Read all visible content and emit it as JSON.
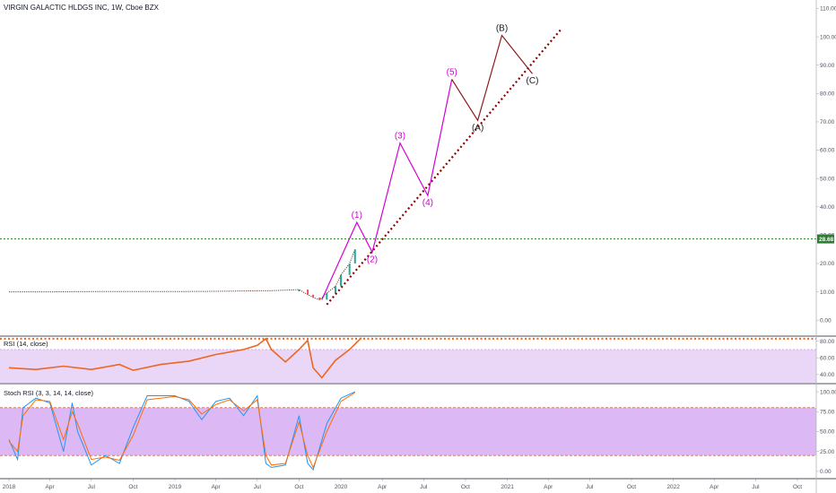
{
  "symbol_title": "VIRGIN GALACTIC HLDGS INC, 1W, Cboe BZX",
  "colors": {
    "wave_impulse": "#d400d4",
    "wave_corrective": "#8b1a1a",
    "trendline": "#8b0000",
    "level_line": "#2e8b2e",
    "price_tag_bg": "#2e7d32",
    "rsi_line": "#f0651f",
    "rsi_band": "#ead6f7",
    "stoch_band": "#dcb8f5",
    "stoch_k": "#2196f3",
    "stoch_d": "#ff6d00",
    "candle_up": "#26a69a",
    "candle_down": "#ef5350",
    "separator": "#131722"
  },
  "chart_data": [
    {
      "type": "line",
      "name": "price-pane",
      "y_ticks": [
        "110.00",
        "100.00",
        "90.00",
        "80.00",
        "70.00",
        "60.00",
        "50.00",
        "40.00",
        "30.00",
        "20.00",
        "10.00",
        "0.00"
      ],
      "ylim": [
        -5,
        113
      ],
      "horizontal_level": {
        "value": 28.68,
        "label": "28.68"
      },
      "price_history": [
        {
          "x": "2018-01",
          "y": 10.0
        },
        {
          "x": "2018-04",
          "y": 10.0
        },
        {
          "x": "2018-07",
          "y": 10.1
        },
        {
          "x": "2018-10",
          "y": 10.1
        },
        {
          "x": "2019-01",
          "y": 10.1
        },
        {
          "x": "2019-04",
          "y": 10.2
        },
        {
          "x": "2019-06",
          "y": 10.3
        },
        {
          "x": "2019-08",
          "y": 10.4
        },
        {
          "x": "2019-09",
          "y": 10.6
        },
        {
          "x": "2019-10",
          "y": 10.8
        },
        {
          "x": "2019-10-20",
          "y": 9.0
        },
        {
          "x": "2019-11",
          "y": 8.0
        },
        {
          "x": "2019-11-15",
          "y": 7.2
        },
        {
          "x": "2019-12",
          "y": 9.5
        },
        {
          "x": "2019-12-20",
          "y": 12.0
        },
        {
          "x": "2020-01",
          "y": 16.0
        },
        {
          "x": "2020-01-20",
          "y": 20.0
        },
        {
          "x": "2020-02",
          "y": 25.0
        }
      ],
      "wave_labels": [
        {
          "label": "(1)",
          "x": "2020-02-05",
          "y": 34.5,
          "kind": "impulse"
        },
        {
          "label": "(2)",
          "x": "2020-03-10",
          "y": 24.0,
          "kind": "impulse"
        },
        {
          "label": "(3)",
          "x": "2020-05-10",
          "y": 62.5,
          "kind": "impulse"
        },
        {
          "label": "(4)",
          "x": "2020-07-10",
          "y": 44.0,
          "kind": "impulse"
        },
        {
          "label": "(5)",
          "x": "2020-09-01",
          "y": 85.0,
          "kind": "impulse"
        },
        {
          "label": "(A)",
          "x": "2020-10-28",
          "y": 70.5,
          "kind": "corrective"
        },
        {
          "label": "(B)",
          "x": "2020-12-20",
          "y": 100.5,
          "kind": "corrective"
        },
        {
          "label": "(C)",
          "x": "2021-02-25",
          "y": 87.0,
          "kind": "corrective"
        }
      ],
      "impulse_path": [
        {
          "x": "2019-11-20",
          "y": 7.2
        },
        {
          "x": "2020-02-05",
          "y": 34.5
        },
        {
          "x": "2020-03-10",
          "y": 24.0
        },
        {
          "x": "2020-05-10",
          "y": 62.5
        },
        {
          "x": "2020-07-10",
          "y": 44.0
        },
        {
          "x": "2020-09-01",
          "y": 85.0
        }
      ],
      "corrective_path": [
        {
          "x": "2020-09-01",
          "y": 85.0
        },
        {
          "x": "2020-10-28",
          "y": 70.5
        },
        {
          "x": "2020-12-20",
          "y": 100.5
        },
        {
          "x": "2021-02-25",
          "y": 87.0
        }
      ],
      "trendline": [
        {
          "x": "2019-12-01",
          "y": 5.5
        },
        {
          "x": "2021-05-01",
          "y": 103.0
        }
      ]
    },
    {
      "type": "line",
      "name": "rsi-pane",
      "label": "RSI (14, close)",
      "y_ticks": [
        "80.00",
        "60.00",
        "40.00"
      ],
      "ylim": [
        30,
        85
      ],
      "band": [
        30,
        70
      ],
      "values": [
        {
          "x": "2018-01",
          "y": 48
        },
        {
          "x": "2018-03",
          "y": 46
        },
        {
          "x": "2018-05",
          "y": 50
        },
        {
          "x": "2018-07",
          "y": 46
        },
        {
          "x": "2018-09",
          "y": 52
        },
        {
          "x": "2018-10",
          "y": 45
        },
        {
          "x": "2018-12",
          "y": 52
        },
        {
          "x": "2019-02",
          "y": 56
        },
        {
          "x": "2019-04",
          "y": 64
        },
        {
          "x": "2019-06",
          "y": 70
        },
        {
          "x": "2019-07",
          "y": 75
        },
        {
          "x": "2019-07-20",
          "y": 83
        },
        {
          "x": "2019-08",
          "y": 70
        },
        {
          "x": "2019-09",
          "y": 55
        },
        {
          "x": "2019-10",
          "y": 70
        },
        {
          "x": "2019-10-20",
          "y": 81
        },
        {
          "x": "2019-11",
          "y": 48
        },
        {
          "x": "2019-11-20",
          "y": 36
        },
        {
          "x": "2019-12-20",
          "y": 57
        },
        {
          "x": "2020-01-20",
          "y": 70
        },
        {
          "x": "2020-02-15",
          "y": 84
        }
      ]
    },
    {
      "type": "line",
      "name": "stoch-pane",
      "label": "Stoch RSI (3, 3, 14, 14, close)",
      "y_ticks": [
        "100.00",
        "75.00",
        "50.00",
        "25.00",
        "0.00"
      ],
      "ylim": [
        -8,
        108
      ],
      "band": [
        20,
        80
      ],
      "series": [
        {
          "name": "K",
          "values": [
            {
              "x": "2018-01",
              "y": 40
            },
            {
              "x": "2018-01-20",
              "y": 15
            },
            {
              "x": "2018-02",
              "y": 80
            },
            {
              "x": "2018-03",
              "y": 92
            },
            {
              "x": "2018-04",
              "y": 86
            },
            {
              "x": "2018-05",
              "y": 25
            },
            {
              "x": "2018-05-20",
              "y": 86
            },
            {
              "x": "2018-06",
              "y": 50
            },
            {
              "x": "2018-07",
              "y": 8
            },
            {
              "x": "2018-08",
              "y": 20
            },
            {
              "x": "2018-09",
              "y": 10
            },
            {
              "x": "2018-10",
              "y": 55
            },
            {
              "x": "2018-11",
              "y": 95
            },
            {
              "x": "2019-01",
              "y": 95
            },
            {
              "x": "2019-02",
              "y": 88
            },
            {
              "x": "2019-03",
              "y": 65
            },
            {
              "x": "2019-04",
              "y": 88
            },
            {
              "x": "2019-05",
              "y": 92
            },
            {
              "x": "2019-06",
              "y": 70
            },
            {
              "x": "2019-07",
              "y": 95
            },
            {
              "x": "2019-07-20",
              "y": 10
            },
            {
              "x": "2019-08",
              "y": 5
            },
            {
              "x": "2019-09",
              "y": 8
            },
            {
              "x": "2019-10",
              "y": 70
            },
            {
              "x": "2019-10-20",
              "y": 10
            },
            {
              "x": "2019-11",
              "y": 2
            },
            {
              "x": "2019-12",
              "y": 60
            },
            {
              "x": "2020-01",
              "y": 92
            },
            {
              "x": "2020-02",
              "y": 100
            }
          ]
        },
        {
          "name": "D",
          "values": [
            {
              "x": "2018-01",
              "y": 38
            },
            {
              "x": "2018-01-20",
              "y": 25
            },
            {
              "x": "2018-02",
              "y": 70
            },
            {
              "x": "2018-03",
              "y": 90
            },
            {
              "x": "2018-04",
              "y": 88
            },
            {
              "x": "2018-05",
              "y": 40
            },
            {
              "x": "2018-05-20",
              "y": 75
            },
            {
              "x": "2018-06",
              "y": 60
            },
            {
              "x": "2018-07",
              "y": 15
            },
            {
              "x": "2018-08",
              "y": 18
            },
            {
              "x": "2018-09",
              "y": 14
            },
            {
              "x": "2018-10",
              "y": 45
            },
            {
              "x": "2018-11",
              "y": 90
            },
            {
              "x": "2019-01",
              "y": 94
            },
            {
              "x": "2019-02",
              "y": 90
            },
            {
              "x": "2019-03",
              "y": 72
            },
            {
              "x": "2019-04",
              "y": 84
            },
            {
              "x": "2019-05",
              "y": 90
            },
            {
              "x": "2019-06",
              "y": 76
            },
            {
              "x": "2019-07",
              "y": 90
            },
            {
              "x": "2019-07-20",
              "y": 20
            },
            {
              "x": "2019-08",
              "y": 8
            },
            {
              "x": "2019-09",
              "y": 10
            },
            {
              "x": "2019-10",
              "y": 62
            },
            {
              "x": "2019-10-20",
              "y": 20
            },
            {
              "x": "2019-11",
              "y": 5
            },
            {
              "x": "2019-12",
              "y": 50
            },
            {
              "x": "2020-01",
              "y": 88
            },
            {
              "x": "2020-02",
              "y": 99
            }
          ]
        }
      ]
    }
  ],
  "x_axis_ticks": [
    {
      "label": "2018",
      "x": "2018-01-01"
    },
    {
      "label": "Apr",
      "x": "2018-04-01"
    },
    {
      "label": "Jul",
      "x": "2018-07-01"
    },
    {
      "label": "Oct",
      "x": "2018-10-01"
    },
    {
      "label": "2019",
      "x": "2019-01-01"
    },
    {
      "label": "Apr",
      "x": "2019-04-01"
    },
    {
      "label": "Jul",
      "x": "2019-07-01"
    },
    {
      "label": "Oct",
      "x": "2019-10-01"
    },
    {
      "label": "2020",
      "x": "2020-01-01"
    },
    {
      "label": "Apr",
      "x": "2020-04-01"
    },
    {
      "label": "Jul",
      "x": "2020-07-01"
    },
    {
      "label": "Oct",
      "x": "2020-10-01"
    },
    {
      "label": "2021",
      "x": "2021-01-01"
    },
    {
      "label": "Apr",
      "x": "2021-04-01"
    },
    {
      "label": "Jul",
      "x": "2021-07-01"
    },
    {
      "label": "Oct",
      "x": "2021-10-01"
    },
    {
      "label": "2022",
      "x": "2022-01-01"
    },
    {
      "label": "Apr",
      "x": "2022-04-01"
    },
    {
      "label": "Jul",
      "x": "2022-07-01"
    },
    {
      "label": "Oct",
      "x": "2022-10-01"
    }
  ]
}
